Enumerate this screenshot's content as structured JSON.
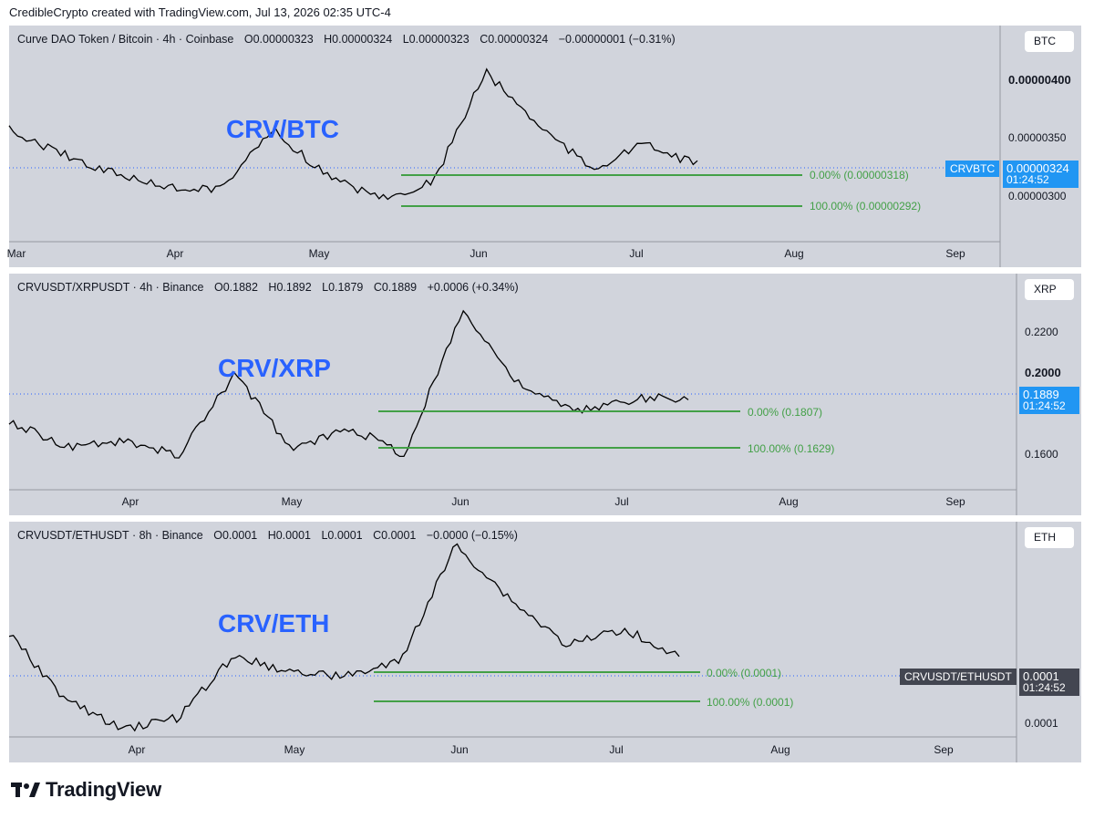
{
  "header": {
    "text": "CredibleCrypto created with TradingView.com, Jul 13, 2026 02:35 UTC-4"
  },
  "footer": {
    "brand": "TradingView",
    "logo_icon": "tradingview-logo-icon"
  },
  "colors": {
    "blue_label": "#2962ff",
    "fib_line": "#43a047",
    "panel_bg": "#d1d4dc",
    "price_tag_blue": "#2196f3",
    "price_tag_dark": "#434651"
  },
  "panels": [
    {
      "legend": {
        "title": "Curve DAO Token / Bitcoin · 4h · Coinbase",
        "o_key": "O",
        "o": "0.00000323",
        "h_key": "H",
        "h": "0.00000324",
        "l_key": "L",
        "l": "0.00000323",
        "c_key": "C",
        "c": "0.00000324",
        "change": "−0.00000001 (−0.31%)"
      },
      "big_label": "CRV/BTC",
      "scale_button": "BTC",
      "fib_levels": [
        {
          "label": "0.00% (0.00000318)"
        },
        {
          "label": "100.00% (0.00000292)"
        }
      ],
      "x_ticks": [
        "Mar",
        "Apr",
        "May",
        "Jun",
        "Jul",
        "Aug",
        "Sep"
      ],
      "y_ticks": [
        "0.00000400",
        "0.00000350",
        "0.00000300"
      ],
      "symbol_tag": "CRVBTC",
      "price_tag": {
        "price": "0.00000324",
        "countdown": "01:24:52"
      }
    },
    {
      "legend": {
        "title": "CRVUSDT/XRPUSDT · 4h · Binance",
        "o_key": "O",
        "o": "0.1882",
        "h_key": "H",
        "h": "0.1892",
        "l_key": "L",
        "l": "0.1879",
        "c_key": "C",
        "c": "0.1889",
        "change": "+0.0006 (+0.34%)"
      },
      "big_label": "CRV/XRP",
      "scale_button": "XRP",
      "fib_levels": [
        {
          "label": "0.00% (0.1807)"
        },
        {
          "label": "100.00% (0.1629)"
        }
      ],
      "x_ticks": [
        "Apr",
        "May",
        "Jun",
        "Jul",
        "Aug",
        "Sep"
      ],
      "y_ticks": [
        "0.2200",
        "0.2000",
        "0.1600"
      ],
      "symbol_tag": "",
      "price_tag": {
        "price": "0.1889",
        "countdown": "01:24:52"
      }
    },
    {
      "legend": {
        "title": "CRVUSDT/ETHUSDT · 8h · Binance",
        "o_key": "O",
        "o": "0.0001",
        "h_key": "H",
        "h": "0.0001",
        "l_key": "L",
        "l": "0.0001",
        "c_key": "C",
        "c": "0.0001",
        "change": "−0.0000 (−0.15%)"
      },
      "big_label": "CRV/ETH",
      "scale_button": "ETH",
      "fib_levels": [
        {
          "label": "0.00% (0.0001)"
        },
        {
          "label": "100.00% (0.0001)"
        }
      ],
      "x_ticks": [
        "Apr",
        "May",
        "Jun",
        "Jul",
        "Aug",
        "Sep"
      ],
      "y_ticks": [
        "0.0001"
      ],
      "symbol_tag": "CRVUSDT/ETHUSDT",
      "price_tag": {
        "price": "0.0001",
        "countdown": "01:24:52"
      }
    }
  ],
  "chart_data": [
    {
      "type": "line",
      "title": "Curve DAO Token / Bitcoin · 4h · Coinbase",
      "x": [
        "Mar 1",
        "Mar 15",
        "Apr 1",
        "Apr 15",
        "May 1",
        "May 12",
        "May 18",
        "May 28",
        "Jun 5",
        "Jun 11",
        "Jun 16",
        "Jun 25",
        "Jul 1",
        "Jul 13"
      ],
      "series": [
        {
          "values": [
            3.6e-06,
            3.35e-06,
            3.15e-06,
            3e-06,
            3e-06,
            3.6e-06,
            3.12e-06,
            2.9e-06,
            3.05e-06,
            4.2e-06,
            3.65e-06,
            3.2e-06,
            3.45e-06,
            3.24e-06
          ]
        }
      ],
      "ylim": [
        2.7e-06,
        4.3e-06
      ],
      "grid": false,
      "annotations": [
        "0.00% (0.00000318)",
        "100.00% (0.00000292)"
      ]
    },
    {
      "type": "line",
      "title": "CRVUSDT/XRPUSDT · 4h · Binance",
      "x": [
        "Mar 20",
        "Apr 1",
        "Apr 15",
        "May 1",
        "May 12",
        "May 18",
        "May 25",
        "Jun 1",
        "Jun 11",
        "Jun 16",
        "Jun 25",
        "Jul 1",
        "Jul 13"
      ],
      "series": [
        {
          "values": [
            0.178,
            0.166,
            0.168,
            0.162,
            0.2,
            0.164,
            0.175,
            0.162,
            0.23,
            0.195,
            0.182,
            0.188,
            0.1889
          ]
        }
      ],
      "ylim": [
        0.155,
        0.232
      ],
      "grid": false,
      "annotations": [
        "0.00% (0.1807)",
        "100.00% (0.1629)"
      ]
    },
    {
      "type": "line",
      "title": "CRVUSDT/ETHUSDT · 8h · Binance",
      "x": [
        "Mar 20",
        "Apr 1",
        "Apr 20",
        "May 1",
        "May 12",
        "May 18",
        "May 28",
        "Jun 4",
        "Jun 11",
        "Jun 17",
        "Jun 25",
        "Jul 1",
        "Jul 13"
      ],
      "series": [
        {
          "values": [
            0.000108,
            8.5e-05,
            7.4e-05,
            7.8e-05,
            0.0001,
            9.5e-05,
            9.3e-05,
            9.8e-05,
            0.00014,
            0.00012,
            0.000104,
            0.00011,
            0.0001
          ]
        }
      ],
      "ylim": [
        7e-05,
        0.000145
      ],
      "grid": false,
      "annotations": [
        "0.00% (0.0001)",
        "100.00% (0.0001)"
      ]
    }
  ]
}
